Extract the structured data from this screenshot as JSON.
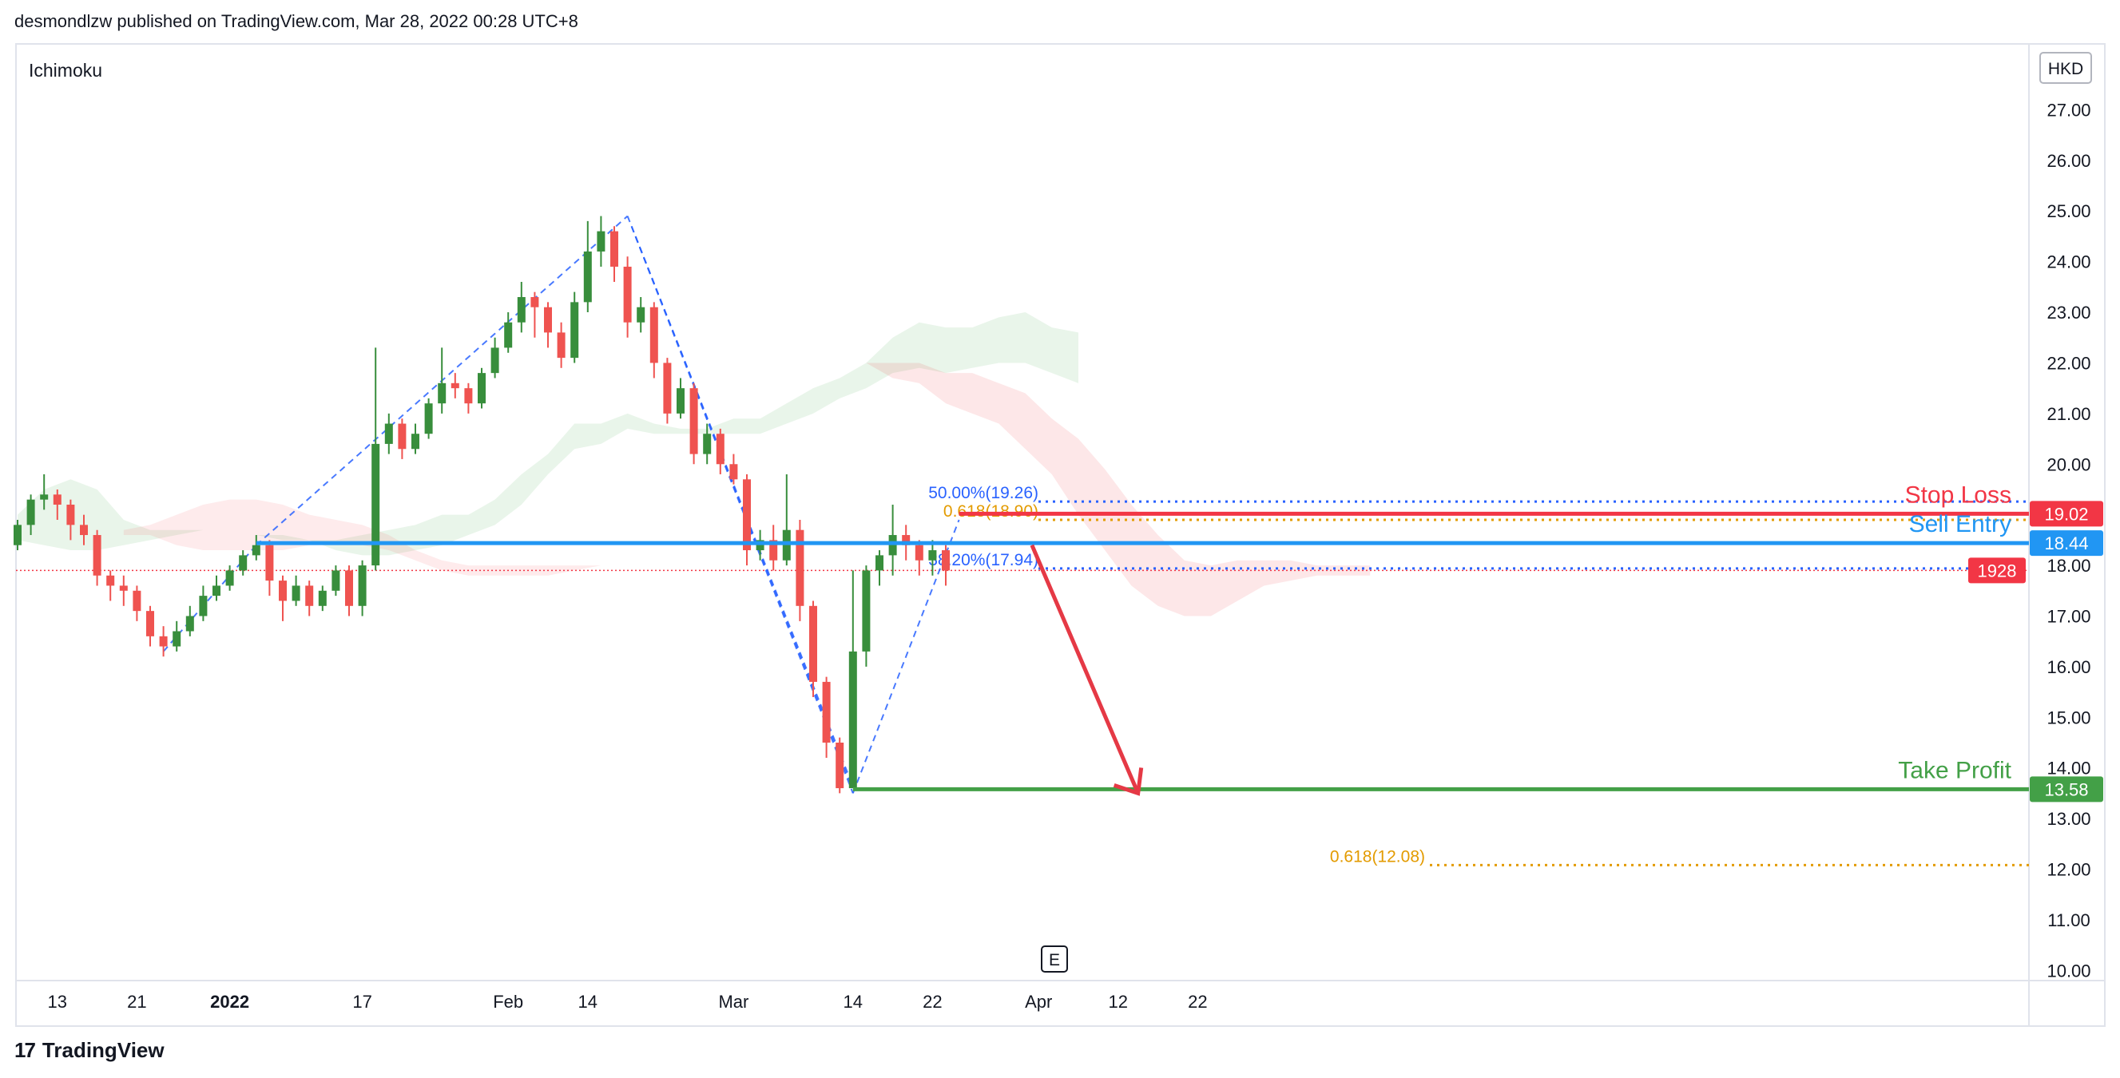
{
  "header": {
    "publisher_line": "desmondlzw published on TradingView.com, Mar 28, 2022 00:28 UTC+8"
  },
  "footer": {
    "logo_glyph": "17",
    "brand": "TradingView"
  },
  "chart_data": {
    "type": "candlestick",
    "indicator_label": "Ichimoku",
    "currency": "HKD",
    "earnings_marker": "E",
    "ylim": [
      9.8,
      28.3
    ],
    "y_ticks": [
      "10.00",
      "11.00",
      "12.00",
      "13.00",
      "14.00",
      "15.00",
      "16.00",
      "17.00",
      "18.00",
      "19.00",
      "20.00",
      "21.00",
      "22.00",
      "23.00",
      "24.00",
      "25.00",
      "26.00",
      "27.00"
    ],
    "y_tick_values": [
      10,
      11,
      12,
      13,
      14,
      15,
      16,
      17,
      18,
      19,
      20,
      21,
      22,
      23,
      24,
      25,
      26,
      27
    ],
    "x_ticks": [
      {
        "label": "13",
        "bar": 3,
        "bold": false
      },
      {
        "label": "21",
        "bar": 9,
        "bold": false
      },
      {
        "label": "2022",
        "bar": 16,
        "bold": true
      },
      {
        "label": "17",
        "bar": 26,
        "bold": false
      },
      {
        "label": "Feb",
        "bar": 37,
        "bold": false
      },
      {
        "label": "14",
        "bar": 43,
        "bold": false
      },
      {
        "label": "Mar",
        "bar": 54,
        "bold": false
      },
      {
        "label": "14",
        "bar": 63,
        "bold": false
      },
      {
        "label": "22",
        "bar": 69,
        "bold": false
      },
      {
        "label": "Apr",
        "bar": 77,
        "bold": false
      },
      {
        "label": "12",
        "bar": 83,
        "bold": false
      },
      {
        "label": "22",
        "bar": 89,
        "bold": false
      }
    ],
    "candles": [
      [
        18.4,
        18.8,
        18.3,
        18.9
      ],
      [
        18.8,
        19.3,
        18.6,
        19.4
      ],
      [
        19.3,
        19.4,
        19.1,
        19.8
      ],
      [
        19.4,
        19.2,
        18.9,
        19.5
      ],
      [
        19.2,
        18.8,
        18.5,
        19.3
      ],
      [
        18.8,
        18.6,
        18.4,
        19.0
      ],
      [
        18.6,
        17.8,
        17.6,
        18.7
      ],
      [
        17.8,
        17.6,
        17.3,
        17.9
      ],
      [
        17.6,
        17.5,
        17.2,
        17.8
      ],
      [
        17.5,
        17.1,
        16.9,
        17.6
      ],
      [
        17.1,
        16.6,
        16.4,
        17.2
      ],
      [
        16.6,
        16.4,
        16.2,
        16.8
      ],
      [
        16.4,
        16.7,
        16.3,
        16.9
      ],
      [
        16.7,
        17.0,
        16.6,
        17.2
      ],
      [
        17.0,
        17.4,
        16.9,
        17.6
      ],
      [
        17.4,
        17.6,
        17.3,
        17.8
      ],
      [
        17.6,
        17.9,
        17.5,
        18.0
      ],
      [
        17.9,
        18.2,
        17.8,
        18.3
      ],
      [
        18.2,
        18.4,
        18.1,
        18.6
      ],
      [
        18.4,
        17.7,
        17.4,
        18.5
      ],
      [
        17.7,
        17.3,
        16.9,
        17.8
      ],
      [
        17.3,
        17.6,
        17.2,
        17.8
      ],
      [
        17.6,
        17.2,
        17.0,
        17.7
      ],
      [
        17.2,
        17.5,
        17.1,
        17.6
      ],
      [
        17.5,
        17.9,
        17.4,
        18.0
      ],
      [
        17.9,
        17.2,
        17.0,
        18.0
      ],
      [
        17.2,
        18.0,
        17.0,
        18.1
      ],
      [
        18.0,
        20.4,
        17.9,
        22.3
      ],
      [
        20.4,
        20.8,
        20.2,
        21.0
      ],
      [
        20.8,
        20.3,
        20.1,
        20.9
      ],
      [
        20.3,
        20.6,
        20.2,
        20.8
      ],
      [
        20.6,
        21.2,
        20.5,
        21.3
      ],
      [
        21.2,
        21.6,
        21.0,
        22.3
      ],
      [
        21.6,
        21.5,
        21.3,
        21.8
      ],
      [
        21.5,
        21.2,
        21.0,
        21.6
      ],
      [
        21.2,
        21.8,
        21.1,
        21.9
      ],
      [
        21.8,
        22.3,
        21.7,
        22.5
      ],
      [
        22.3,
        22.8,
        22.2,
        23.0
      ],
      [
        22.8,
        23.3,
        22.6,
        23.6
      ],
      [
        23.3,
        23.1,
        22.5,
        23.4
      ],
      [
        23.1,
        22.6,
        22.3,
        23.2
      ],
      [
        22.6,
        22.1,
        21.9,
        22.8
      ],
      [
        22.1,
        23.2,
        22.0,
        23.4
      ],
      [
        23.2,
        24.2,
        23.0,
        24.8
      ],
      [
        24.2,
        24.6,
        23.9,
        24.9
      ],
      [
        24.6,
        23.9,
        23.6,
        24.7
      ],
      [
        23.9,
        22.8,
        22.5,
        24.1
      ],
      [
        22.8,
        23.1,
        22.6,
        23.3
      ],
      [
        23.1,
        22.0,
        21.7,
        23.2
      ],
      [
        22.0,
        21.0,
        20.8,
        22.1
      ],
      [
        21.0,
        21.5,
        20.9,
        21.7
      ],
      [
        21.5,
        20.2,
        20.0,
        21.6
      ],
      [
        20.2,
        20.6,
        20.0,
        20.8
      ],
      [
        20.6,
        20.0,
        19.8,
        20.7
      ],
      [
        20.0,
        19.7,
        19.6,
        20.2
      ],
      [
        19.7,
        18.3,
        18.0,
        19.8
      ],
      [
        18.3,
        18.5,
        18.1,
        18.7
      ],
      [
        18.5,
        18.1,
        17.9,
        18.8
      ],
      [
        18.1,
        18.7,
        18.0,
        19.8
      ],
      [
        18.7,
        17.2,
        16.9,
        18.9
      ],
      [
        17.2,
        15.7,
        15.4,
        17.3
      ],
      [
        15.7,
        14.5,
        14.2,
        15.8
      ],
      [
        14.5,
        13.6,
        13.5,
        14.6
      ],
      [
        13.6,
        16.3,
        13.6,
        17.9
      ],
      [
        16.3,
        17.9,
        16.0,
        18.0
      ],
      [
        17.9,
        18.2,
        17.6,
        18.3
      ],
      [
        18.2,
        18.6,
        17.8,
        19.2
      ],
      [
        18.6,
        18.4,
        18.1,
        18.8
      ],
      [
        18.4,
        18.1,
        17.8,
        18.5
      ],
      [
        18.1,
        18.3,
        17.8,
        18.5
      ],
      [
        18.3,
        17.9,
        17.6,
        18.4
      ]
    ],
    "cloud": {
      "green_top": [
        19.0,
        19.5,
        19.7,
        19.5,
        18.9,
        18.7,
        18.7,
        18.7,
        18.7,
        18.6,
        18.6,
        18.5,
        18.5,
        18.6,
        18.7,
        18.8,
        19.0,
        19.0,
        19.3,
        19.8,
        20.2,
        20.8,
        20.8,
        21.0,
        20.8,
        20.7,
        20.7,
        20.9,
        20.9,
        21.2,
        21.5,
        21.7,
        22.0,
        22.5,
        22.8,
        22.7,
        22.7,
        22.9,
        23.0,
        22.7,
        22.6
      ],
      "green_bottom": [
        18.5,
        18.4,
        18.3,
        18.3,
        18.4,
        18.5,
        18.6,
        18.7,
        18.7,
        18.6,
        18.5,
        18.5,
        18.3,
        18.2,
        18.2,
        18.3,
        18.4,
        18.6,
        18.8,
        19.2,
        19.8,
        20.3,
        20.4,
        20.7,
        20.6,
        20.6,
        20.6,
        20.6,
        20.6,
        20.8,
        21.0,
        21.3,
        21.5,
        21.8,
        21.9,
        21.8,
        21.9,
        22.0,
        22.0,
        21.8,
        21.6
      ],
      "red_top": [
        22.0,
        22.0,
        22.0,
        21.8,
        21.8,
        21.6,
        21.4,
        20.9,
        20.5,
        19.9,
        19.2,
        18.6,
        18.1,
        18.0,
        18.1,
        18.1,
        18.1,
        18.0,
        18.0,
        18.0
      ],
      "red_bottom": [
        22.0,
        21.7,
        21.6,
        21.2,
        21.0,
        20.8,
        20.3,
        19.8,
        19.0,
        18.3,
        17.6,
        17.2,
        17.0,
        17.0,
        17.3,
        17.6,
        17.7,
        17.8,
        17.8,
        17.8
      ]
    },
    "levels": {
      "stop_loss": {
        "label": "Stop Loss",
        "value": 19.02,
        "tag": "19.02",
        "color": "#f23645"
      },
      "sell_entry": {
        "label": "Sell Entry",
        "value": 18.44,
        "tag": "18.44",
        "color": "#2196f3"
      },
      "take_profit": {
        "label": "Take Profit",
        "value": 13.58,
        "tag": "13.58",
        "color": "#43a047"
      },
      "current_price": {
        "value": 17.9,
        "tag": "1928",
        "color": "#f23645"
      }
    },
    "fib_levels": [
      {
        "label": "50.00%(19.26)",
        "value": 19.26,
        "color": "#2962ff"
      },
      {
        "label": "0.618(18.90)",
        "value": 18.9,
        "color": "#e39b00"
      },
      {
        "label": "38.20%(17.94)",
        "value": 17.94,
        "color": "#2962ff"
      },
      {
        "label": "0.618(12.08)",
        "value": 12.08,
        "color": "#e39b00"
      }
    ],
    "colors": {
      "up": "#26a69a",
      "up_candle": "#388e3c",
      "down": "#ef5350",
      "grid": "#e0e3eb",
      "axis_text": "#131722"
    }
  }
}
